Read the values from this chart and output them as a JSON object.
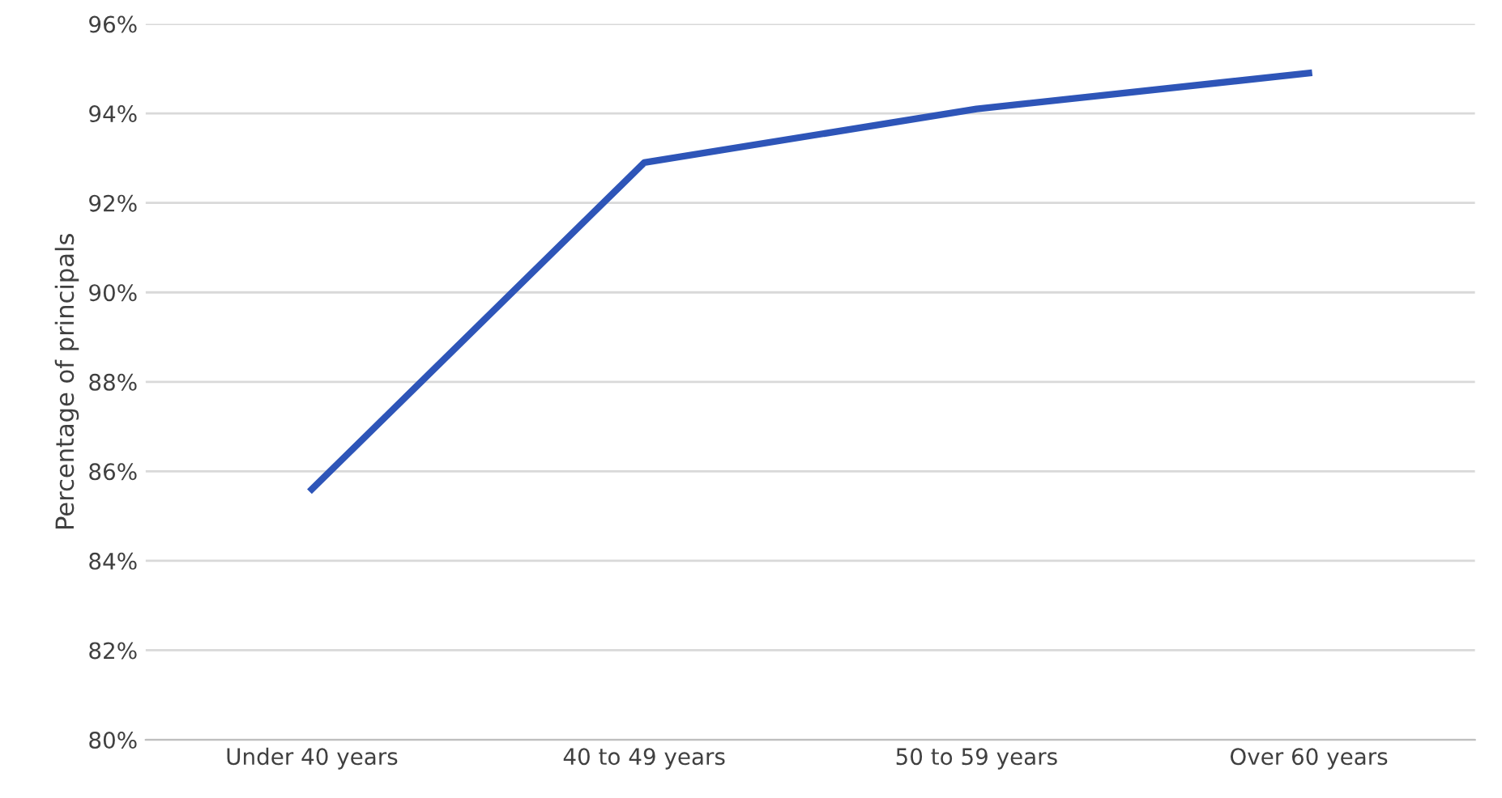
{
  "chart_data": {
    "type": "line",
    "ylabel": "Percentage of principals",
    "categories": [
      "Under 40 years",
      "40 to 49 years",
      "50 to 59 years",
      "Over 60 years"
    ],
    "series": [
      {
        "color": "#2e55b8",
        "values": [
          85.6,
          92.9,
          94.1,
          94.9
        ]
      }
    ],
    "ylim": [
      80,
      96
    ],
    "yticks": [
      {
        "value": 80,
        "label": "80%"
      },
      {
        "value": 82,
        "label": "82%"
      },
      {
        "value": 84,
        "label": "84%"
      },
      {
        "value": 86,
        "label": "86%"
      },
      {
        "value": 88,
        "label": "88%"
      },
      {
        "value": 90,
        "label": "90%"
      },
      {
        "value": 92,
        "label": "92%"
      },
      {
        "value": 94,
        "label": "94%"
      },
      {
        "value": 96,
        "label": "96%"
      }
    ],
    "grid": "y",
    "marker": "none",
    "line_style": "solid"
  }
}
